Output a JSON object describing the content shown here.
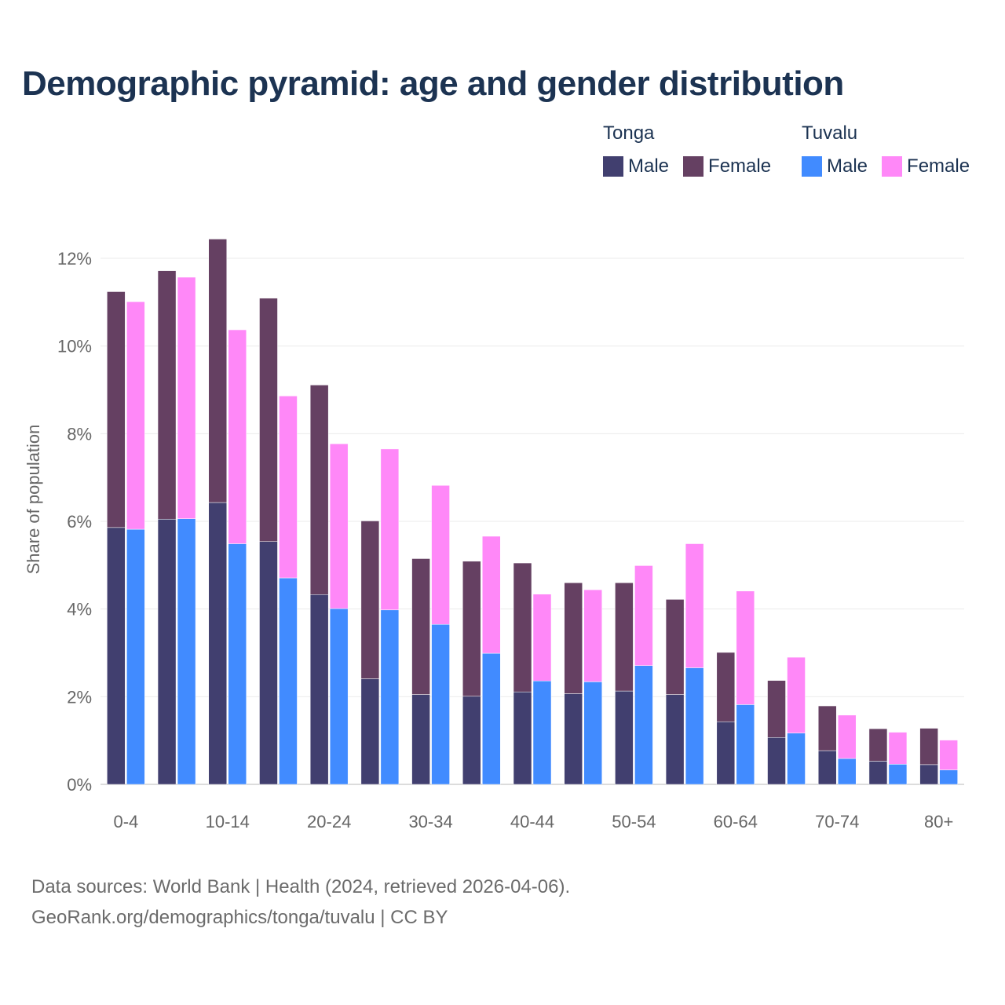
{
  "title": "Demographic pyramid: age and gender distribution",
  "legend": [
    {
      "group": "Tonga",
      "items": [
        {
          "label": "Male",
          "color": "#413f6f"
        },
        {
          "label": "Female",
          "color": "#654062"
        }
      ]
    },
    {
      "group": "Tuvalu",
      "items": [
        {
          "label": "Male",
          "color": "#418bff"
        },
        {
          "label": "Female",
          "color": "#ff88f8"
        }
      ]
    }
  ],
  "footer": {
    "line1": "Data sources: World Bank | Health (2024, retrieved 2026-04-06).",
    "line2": "GeoRank.org/demographics/tonga/tuvalu | CC BY"
  },
  "chart_data": {
    "type": "bar",
    "stacked": true,
    "ylabel": "Share of population",
    "xlabel": "",
    "ylim": [
      0,
      12.4
    ],
    "yticks": [
      0,
      2,
      4,
      6,
      8,
      10,
      12
    ],
    "ytick_suffix": "%",
    "grid": true,
    "categories": [
      "0-4",
      "5-9",
      "10-14",
      "15-19",
      "20-24",
      "25-29",
      "30-34",
      "35-39",
      "40-44",
      "45-49",
      "50-54",
      "55-59",
      "60-64",
      "65-69",
      "70-74",
      "75-79",
      "80+"
    ],
    "xtick_labels": [
      "0-4",
      "10-14",
      "20-24",
      "30-34",
      "40-44",
      "50-54",
      "60-64",
      "70-74",
      "80+"
    ],
    "xtick_every": 2,
    "countries": [
      {
        "name": "Tonga",
        "male": [
          5.86,
          6.05,
          6.43,
          5.54,
          4.33,
          2.41,
          2.05,
          2.01,
          2.11,
          2.07,
          2.13,
          2.05,
          1.43,
          1.07,
          0.77,
          0.53,
          0.45
        ],
        "female": [
          5.38,
          5.67,
          6.01,
          5.55,
          4.78,
          3.6,
          3.1,
          3.08,
          2.94,
          2.53,
          2.47,
          2.17,
          1.58,
          1.3,
          1.02,
          0.74,
          0.83
        ],
        "male_color": "#413f6f",
        "female_color": "#654062"
      },
      {
        "name": "Tuvalu",
        "male": [
          5.82,
          6.06,
          5.49,
          4.71,
          4.01,
          3.98,
          3.65,
          2.99,
          2.36,
          2.34,
          2.71,
          2.66,
          1.82,
          1.17,
          0.59,
          0.46,
          0.33
        ],
        "female": [
          5.19,
          5.51,
          4.88,
          4.15,
          3.76,
          3.67,
          3.17,
          2.67,
          1.98,
          2.1,
          2.28,
          2.83,
          2.59,
          1.73,
          0.99,
          0.73,
          0.68
        ],
        "male_color": "#418bff",
        "female_color": "#ff88f8"
      }
    ]
  }
}
